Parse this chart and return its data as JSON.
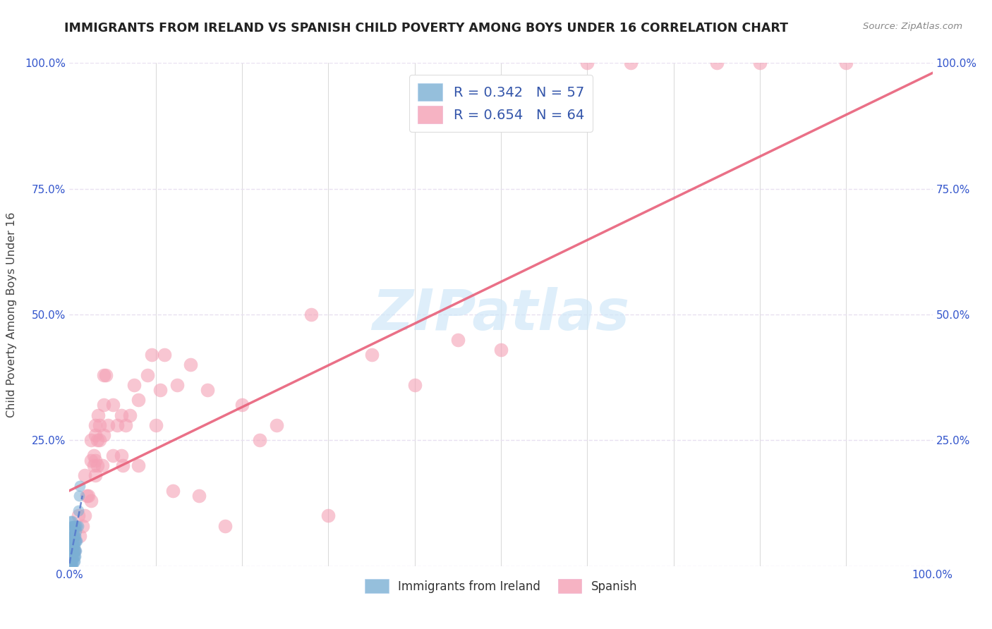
{
  "title": "IMMIGRANTS FROM IRELAND VS SPANISH CHILD POVERTY AMONG BOYS UNDER 16 CORRELATION CHART",
  "source": "Source: ZipAtlas.com",
  "xlabel": "",
  "ylabel": "Child Poverty Among Boys Under 16",
  "x_tick_labels": [
    "0.0%",
    "",
    "",
    "",
    "",
    "",
    "",
    "",
    "",
    "100.0%"
  ],
  "y_tick_labels_left": [
    "",
    "25.0%",
    "50.0%",
    "75.0%",
    "100.0%"
  ],
  "y_tick_labels_right": [
    "",
    "25.0%",
    "50.0%",
    "75.0%",
    "100.0%"
  ],
  "x_ticks": [
    0,
    0.1,
    0.2,
    0.3,
    0.4,
    0.5,
    0.6,
    0.7,
    0.8,
    1.0
  ],
  "y_ticks": [
    0,
    0.25,
    0.5,
    0.75,
    1.0
  ],
  "xlim": [
    0,
    1.0
  ],
  "ylim": [
    0,
    1.0
  ],
  "ireland_R": 0.342,
  "ireland_N": 57,
  "spanish_R": 0.654,
  "spanish_N": 64,
  "ireland_color": "#7bafd4",
  "spanish_color": "#f4a0b5",
  "ireland_line_color": "#5577cc",
  "spanish_line_color": "#e8607a",
  "legend_text_color": "#3355aa",
  "background_color": "#ffffff",
  "grid_color": "#e8e0f0",
  "watermark_text": "ZIPatlas",
  "ireland_scatter_x": [
    0.0,
    0.0,
    0.001,
    0.001,
    0.001,
    0.001,
    0.001,
    0.001,
    0.002,
    0.002,
    0.002,
    0.002,
    0.002,
    0.002,
    0.003,
    0.003,
    0.003,
    0.003,
    0.003,
    0.003,
    0.003,
    0.003,
    0.003,
    0.003,
    0.004,
    0.004,
    0.004,
    0.004,
    0.004,
    0.004,
    0.004,
    0.004,
    0.005,
    0.005,
    0.005,
    0.005,
    0.005,
    0.005,
    0.006,
    0.006,
    0.006,
    0.006,
    0.006,
    0.007,
    0.007,
    0.007,
    0.007,
    0.007,
    0.008,
    0.008,
    0.008,
    0.009,
    0.009,
    0.01,
    0.01,
    0.011,
    0.012
  ],
  "ireland_scatter_y": [
    0.0,
    0.02,
    0.0,
    0.02,
    0.03,
    0.05,
    0.07,
    0.09,
    0.0,
    0.01,
    0.02,
    0.03,
    0.04,
    0.06,
    0.0,
    0.01,
    0.02,
    0.03,
    0.04,
    0.05,
    0.06,
    0.07,
    0.08,
    0.09,
    0.0,
    0.01,
    0.02,
    0.03,
    0.04,
    0.05,
    0.06,
    0.08,
    0.01,
    0.02,
    0.03,
    0.04,
    0.06,
    0.08,
    0.01,
    0.02,
    0.03,
    0.04,
    0.06,
    0.02,
    0.03,
    0.05,
    0.06,
    0.08,
    0.03,
    0.05,
    0.07,
    0.05,
    0.08,
    0.08,
    0.11,
    0.14,
    0.16
  ],
  "spanish_scatter_x": [
    0.005,
    0.01,
    0.012,
    0.015,
    0.018,
    0.018,
    0.02,
    0.022,
    0.025,
    0.025,
    0.025,
    0.028,
    0.028,
    0.03,
    0.03,
    0.03,
    0.03,
    0.032,
    0.032,
    0.033,
    0.035,
    0.035,
    0.038,
    0.04,
    0.04,
    0.04,
    0.042,
    0.045,
    0.05,
    0.05,
    0.055,
    0.06,
    0.06,
    0.062,
    0.065,
    0.07,
    0.075,
    0.08,
    0.08,
    0.09,
    0.095,
    0.1,
    0.105,
    0.11,
    0.12,
    0.125,
    0.14,
    0.15,
    0.16,
    0.18,
    0.2,
    0.22,
    0.24,
    0.28,
    0.3,
    0.35,
    0.4,
    0.45,
    0.5,
    0.6,
    0.65,
    0.75,
    0.8,
    0.9
  ],
  "spanish_scatter_y": [
    0.03,
    0.1,
    0.06,
    0.08,
    0.1,
    0.18,
    0.14,
    0.14,
    0.13,
    0.21,
    0.25,
    0.2,
    0.22,
    0.18,
    0.21,
    0.26,
    0.28,
    0.2,
    0.25,
    0.3,
    0.25,
    0.28,
    0.2,
    0.26,
    0.32,
    0.38,
    0.38,
    0.28,
    0.22,
    0.32,
    0.28,
    0.22,
    0.3,
    0.2,
    0.28,
    0.3,
    0.36,
    0.2,
    0.33,
    0.38,
    0.42,
    0.28,
    0.35,
    0.42,
    0.15,
    0.36,
    0.4,
    0.14,
    0.35,
    0.08,
    0.32,
    0.25,
    0.28,
    0.5,
    0.1,
    0.42,
    0.36,
    0.45,
    0.43,
    1.0,
    1.0,
    1.0,
    1.0,
    1.0
  ],
  "ireland_trendline_x": [
    0.0,
    0.015
  ],
  "ireland_trendline_y": [
    0.005,
    0.14
  ],
  "spanish_trendline_x": [
    0.0,
    1.0
  ],
  "spanish_trendline_y": [
    0.15,
    0.98
  ]
}
